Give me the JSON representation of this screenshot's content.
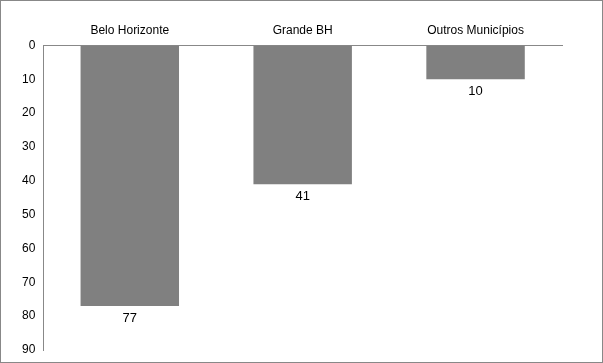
{
  "chart_data": {
    "type": "bar",
    "categories": [
      "Belo Horizonte",
      "Grande BH",
      "Outros Municípios"
    ],
    "values": [
      77,
      41,
      10
    ],
    "color": "#808080",
    "ylim": [
      0,
      90
    ],
    "yticks": [
      0,
      10,
      20,
      30,
      40,
      50,
      60,
      70,
      80,
      90
    ],
    "grid": false,
    "data_labels": true
  }
}
